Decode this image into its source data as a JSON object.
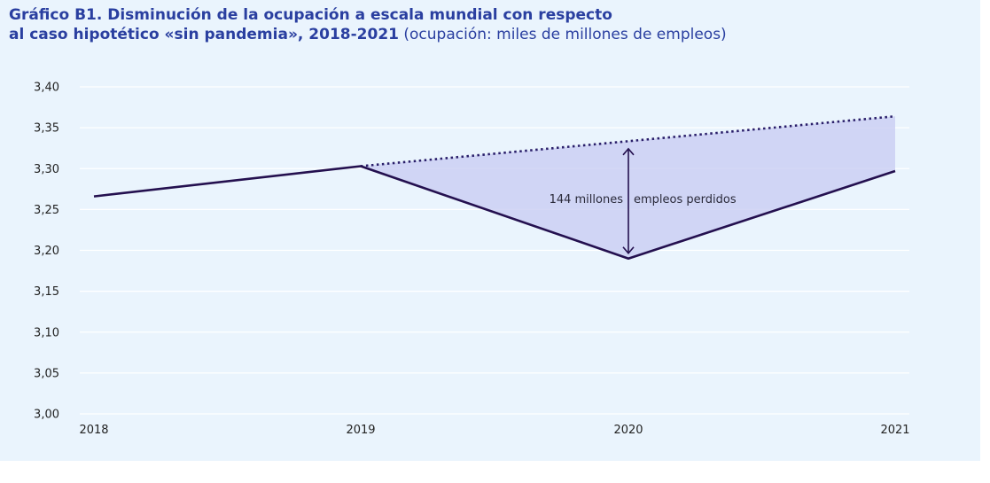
{
  "title": {
    "line1": "Gráfico B1.  Disminución de la ocupación a escala mundial con respecto",
    "line2_bold": "al caso hipotético «sin pandemia», 2018-2021",
    "line2_unit": " (ocupación: miles de millones de empleos)"
  },
  "colors": {
    "panel_background": "#eaf4fd",
    "title": "#2a3fa0",
    "actual_line": "#24104f",
    "counterfactual_line": "#2a1f6a",
    "gap_fill": "#c9cdf3",
    "gridline": "#ffffff"
  },
  "chart_data": {
    "type": "line",
    "categories": [
      "2018",
      "2019",
      "2020",
      "2021"
    ],
    "series": [
      {
        "style": "solid",
        "values": [
          3.266,
          3.303,
          3.19,
          3.297
        ]
      },
      {
        "style": "dotted",
        "x": [
          "2019",
          "2021"
        ],
        "values": [
          3.303,
          3.364
        ]
      }
    ],
    "shaded_gap": "between dotted and solid series from 2019 to 2021",
    "annotation": {
      "text_left": "144 millones",
      "text_right": "empleos perdidos",
      "x": "2020",
      "y_from": 3.19,
      "y_to": 3.333
    },
    "ylim": [
      3.0,
      3.4
    ],
    "yticks": [
      "3,00",
      "3,05",
      "3,10",
      "3,15",
      "3,20",
      "3,25",
      "3,30",
      "3,35",
      "3,40"
    ],
    "ytick_values": [
      3.0,
      3.05,
      3.1,
      3.15,
      3.2,
      3.25,
      3.3,
      3.35,
      3.4
    ],
    "grid": true,
    "legend": "none"
  }
}
